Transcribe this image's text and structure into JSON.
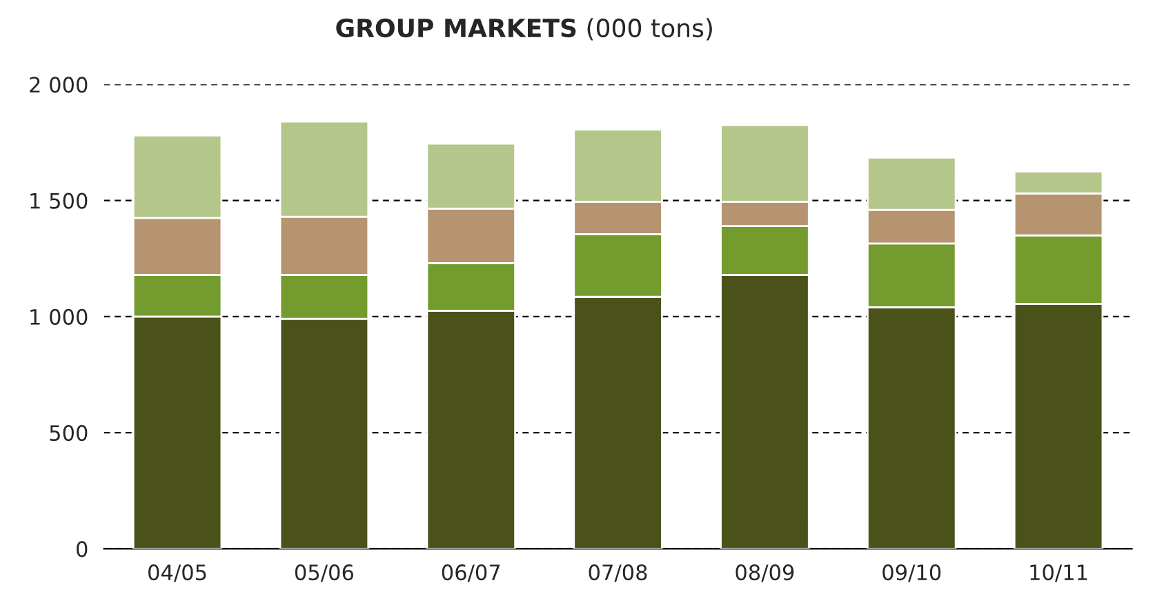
{
  "chart_data": {
    "type": "bar",
    "title": "GROUP MARKETS",
    "subtitle": "(000 tons)",
    "categories": [
      "04/05",
      "05/06",
      "06/07",
      "07/08",
      "08/09",
      "09/10",
      "10/11"
    ],
    "stacked": true,
    "series": [
      {
        "color": "#4a521a",
        "values": [
          1000,
          990,
          1025,
          1085,
          1180,
          1040,
          1055
        ]
      },
      {
        "color": "#739b2d",
        "values": [
          180,
          190,
          205,
          270,
          210,
          275,
          295
        ]
      },
      {
        "color": "#b5946f",
        "values": [
          245,
          250,
          235,
          140,
          105,
          145,
          180
        ]
      },
      {
        "color": "#b4c68a",
        "values": [
          355,
          410,
          280,
          310,
          330,
          225,
          95
        ]
      }
    ],
    "ylim": [
      0,
      2000
    ],
    "yticks": [
      0,
      500,
      {
        "value": 1000,
        "label": "1 000"
      },
      {
        "value": 1500,
        "label": "1 500"
      },
      {
        "value": 2000,
        "label": "2 000"
      }
    ],
    "grid": "y"
  }
}
